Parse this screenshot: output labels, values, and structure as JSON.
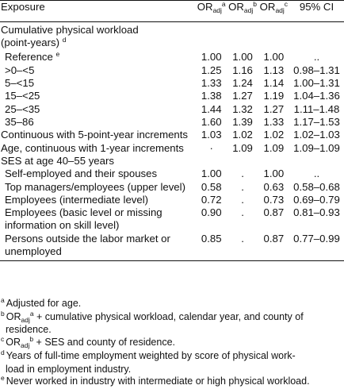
{
  "header": {
    "exposure": "Exposure",
    "or_base": "OR",
    "or_sub": "adj",
    "or1_sup": "a",
    "or2_sup": "b",
    "or3_sup": "c",
    "ci": "95% CI"
  },
  "sections": {
    "workload_title_1": "Cumulative physical workload",
    "workload_title_2": "(point-years)",
    "workload_title_mark": "d",
    "ses_title": "SES at age 40–55 years"
  },
  "rows": [
    {
      "label": "Reference",
      "mark": "e",
      "or1": "1.00",
      "or2": "1.00",
      "or3": "1.00",
      "ci": ".."
    },
    {
      "label": ">0–<5",
      "or1": "1.25",
      "or2": "1.16",
      "or3": "1.13",
      "ci": "0.98–1.31"
    },
    {
      "label": "5–<15",
      "or1": "1.33",
      "or2": "1.24",
      "or3": "1.14",
      "ci": "1.00–1.31"
    },
    {
      "label": "15–<25",
      "or1": "1.38",
      "or2": "1.27",
      "or3": "1.19",
      "ci": "1.04–1.36"
    },
    {
      "label": "25–<35",
      "or1": "1.44",
      "or2": "1.32",
      "or3": "1.27",
      "ci": "1.11–1.48"
    },
    {
      "label": "35–86",
      "or1": "1.60",
      "or2": "1.39",
      "or3": "1.33",
      "ci": "1.17–1.53"
    },
    {
      "label": "Continuous with 5-point-year increments",
      "or1": "1.03",
      "or2": "1.02",
      "or3": "1.02",
      "ci": "1.02–1.03"
    },
    {
      "label": "Age, continuous with 1-year increments",
      "or1": "·",
      "or2": "1.09",
      "or3": "1.09",
      "ci": "1.09–1.09"
    },
    {
      "label": "Self-employed and their spouses",
      "or1": "1.00",
      "or2": ".",
      "or3": "1.00",
      "ci": ".."
    },
    {
      "label": "Top managers/employees (upper level)",
      "or1": "0.58",
      "or2": ".",
      "or3": "0.63",
      "ci": "0.58–0.68"
    },
    {
      "label": "Employees (intermediate level)",
      "or1": "0.72",
      "or2": ".",
      "or3": "0.73",
      "ci": "0.69–0.79"
    },
    {
      "label_1": "Employees (basic level or missing",
      "label_2": "information on skill level)",
      "or1": "0.90",
      "or2": ".",
      "or3": "0.87",
      "ci": "0.81–0.93"
    },
    {
      "label_1": "Persons outside the labor market or",
      "label_2": "unemployed",
      "or1": "0.85",
      "or2": ".",
      "or3": "0.87",
      "ci": "0.77–0.99"
    }
  ],
  "footnotes": {
    "a_mark": "a",
    "a_text": "Adjusted for age.",
    "b_mark": "b",
    "b_or": "OR",
    "b_sub": "adj",
    "b_sup": "a",
    "b_text_1": " + cumulative physical workload, calendar year, and county of",
    "b_text_2": "residence.",
    "c_mark": "c",
    "c_or": "OR",
    "c_sub": "adj",
    "c_sup": "b",
    "c_text": " + SES and county of residence.",
    "d_mark": "d",
    "d_text_1": "Years of full-time employment weighted by score of physical work-",
    "d_text_2": "load in employment industry.",
    "e_mark": "e",
    "e_text": "Never worked in industry with intermediate or high physical workload."
  }
}
